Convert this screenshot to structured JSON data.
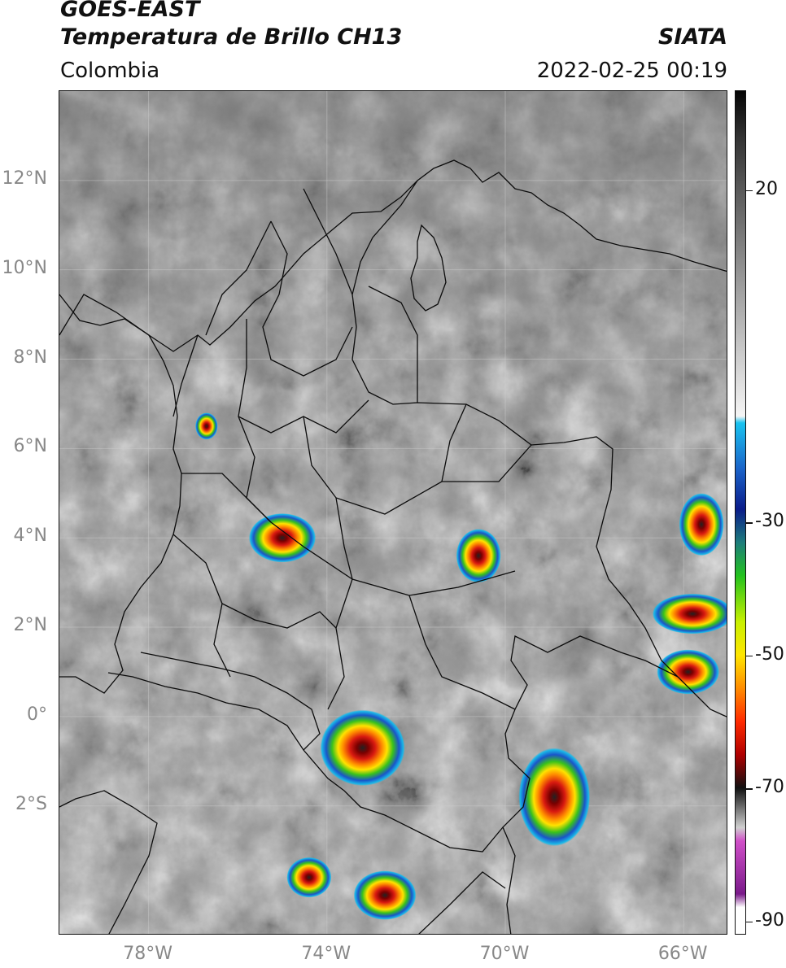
{
  "header": {
    "satellite": "GOES-EAST",
    "product": "Temperatura de Brillo CH13",
    "organization": "SIATA",
    "region": "Colombia",
    "timestamp": "2022-02-25 00:19"
  },
  "map": {
    "lat_labels": [
      "12°N",
      "10°N",
      "8°N",
      "6°N",
      "4°N",
      "2°N",
      "0°",
      "2°S"
    ],
    "lon_labels": [
      "78°W",
      "74°W",
      "70°W",
      "66°W"
    ],
    "lat_values": [
      12,
      10,
      8,
      6,
      4,
      2,
      0,
      -2
    ],
    "lon_values": [
      -78,
      -74,
      -70,
      -66
    ],
    "lat_range": [
      -4.9,
      14.0
    ],
    "lon_range": [
      -80.0,
      -65.0
    ]
  },
  "colorbar": {
    "labels": [
      "20",
      "-30",
      "-50",
      "-70",
      "-90"
    ],
    "values": [
      20,
      -30,
      -50,
      -70,
      -90
    ],
    "range": [
      -92,
      35
    ]
  },
  "storms": [
    {
      "name": "storm-central-andes",
      "lon": -75.0,
      "lat": 4.0,
      "rx": 0.75,
      "ry": 0.55
    },
    {
      "name": "storm-east-plains",
      "lon": -70.6,
      "lat": 3.6,
      "rx": 0.5,
      "ry": 0.6
    },
    {
      "name": "storm-south-putumayo",
      "lon": -73.2,
      "lat": -0.7,
      "rx": 0.95,
      "ry": 0.85
    },
    {
      "name": "storm-southeast-amazon",
      "lon": -68.9,
      "lat": -1.8,
      "rx": 0.8,
      "ry": 1.1
    },
    {
      "name": "storm-far-east",
      "lon": -65.9,
      "lat": 1.0,
      "rx": 0.7,
      "ry": 0.5
    },
    {
      "name": "storm-south-west",
      "lon": -74.4,
      "lat": -3.6,
      "rx": 0.5,
      "ry": 0.45
    },
    {
      "name": "storm-south-center",
      "lon": -72.7,
      "lat": -4.0,
      "rx": 0.7,
      "ry": 0.55
    },
    {
      "name": "storm-choco",
      "lon": -76.7,
      "lat": 6.5,
      "rx": 0.25,
      "ry": 0.3
    },
    {
      "name": "storm-east-border",
      "lon": -65.8,
      "lat": 2.3,
      "rx": 0.9,
      "ry": 0.45
    },
    {
      "name": "storm-eastern-cells",
      "lon": -65.6,
      "lat": 4.3,
      "rx": 0.5,
      "ry": 0.7
    }
  ]
}
